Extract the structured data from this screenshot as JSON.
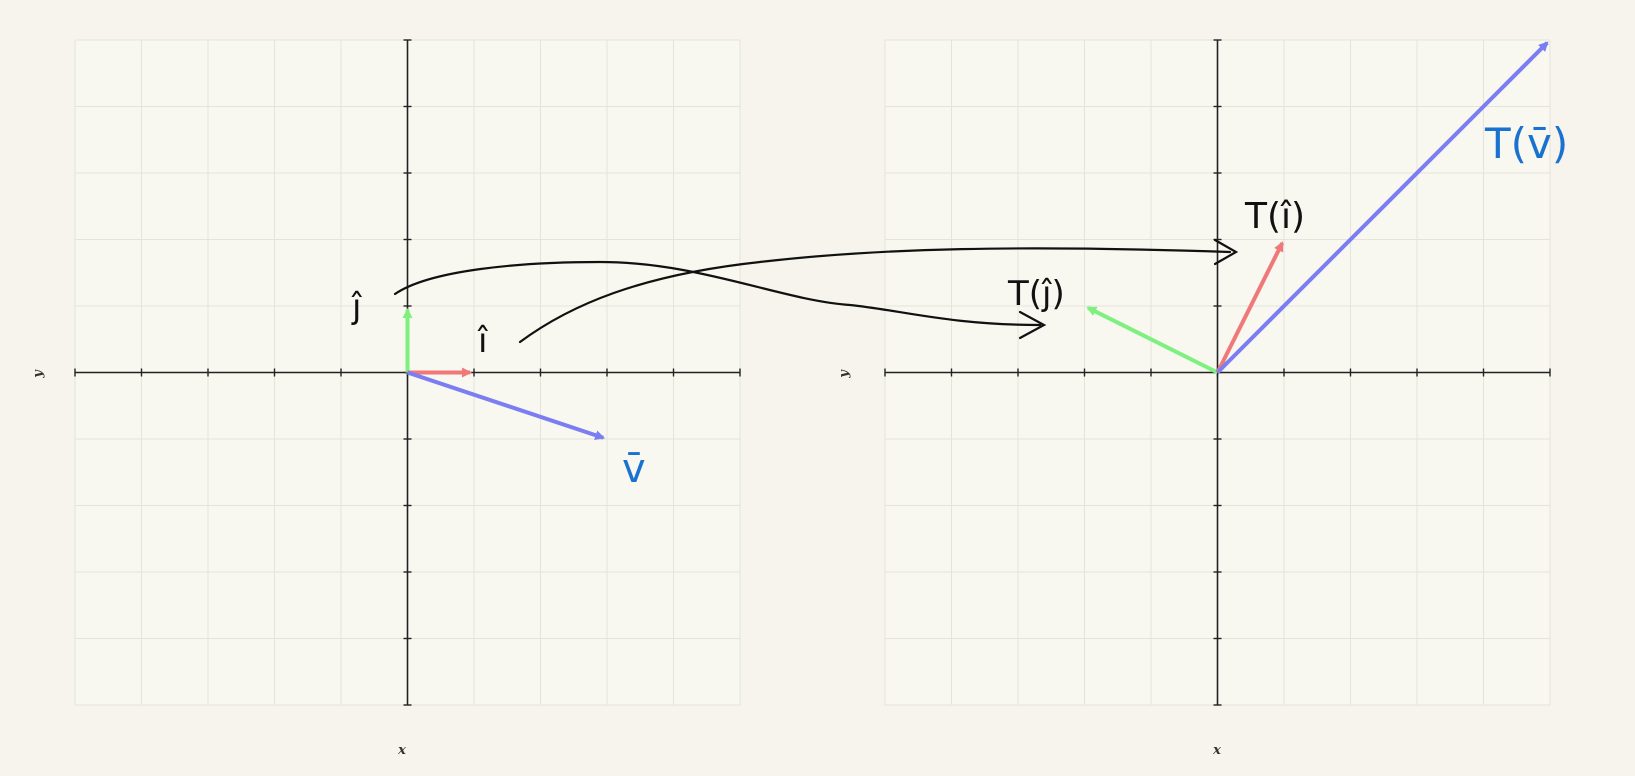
{
  "colors": {
    "background": "#f6f4ec",
    "panel": "#f8f7f0",
    "grid": "#e4e3dc",
    "axis": "#222222",
    "i_hat": "#f07878",
    "j_hat": "#7ef07e",
    "v": "#7b7ef2",
    "annotation_black": "#111111",
    "annotation_blue": "#1a72d0"
  },
  "panels": [
    {
      "id": "original",
      "x_axis_label": "x",
      "y_axis_label": "y",
      "range": [
        -5,
        5
      ],
      "vectors": [
        {
          "id": "j_hat",
          "x": 0,
          "y": 1,
          "color": "#7ef07e"
        },
        {
          "id": "i_hat",
          "x": 1,
          "y": 0,
          "color": "#f07878"
        },
        {
          "id": "v",
          "x": 3,
          "y": -1,
          "color": "#7b7ef2"
        }
      ]
    },
    {
      "id": "transformed",
      "x_axis_label": "x",
      "y_axis_label": "y",
      "range": [
        -5,
        5
      ],
      "vectors": [
        {
          "id": "T_j_hat",
          "x": -2,
          "y": 1,
          "color": "#7ef07e"
        },
        {
          "id": "T_i_hat",
          "x": 1,
          "y": 2,
          "color": "#f07878"
        },
        {
          "id": "T_v",
          "x": 5,
          "y": 5,
          "color": "#7b7ef2"
        }
      ]
    }
  ],
  "annotations": {
    "j_hat": "ĵ",
    "i_hat": "î",
    "v": "v̄",
    "T_j_hat": "T(ĵ)",
    "T_i_hat": "T(î)",
    "T_v": "T(v̄)"
  }
}
